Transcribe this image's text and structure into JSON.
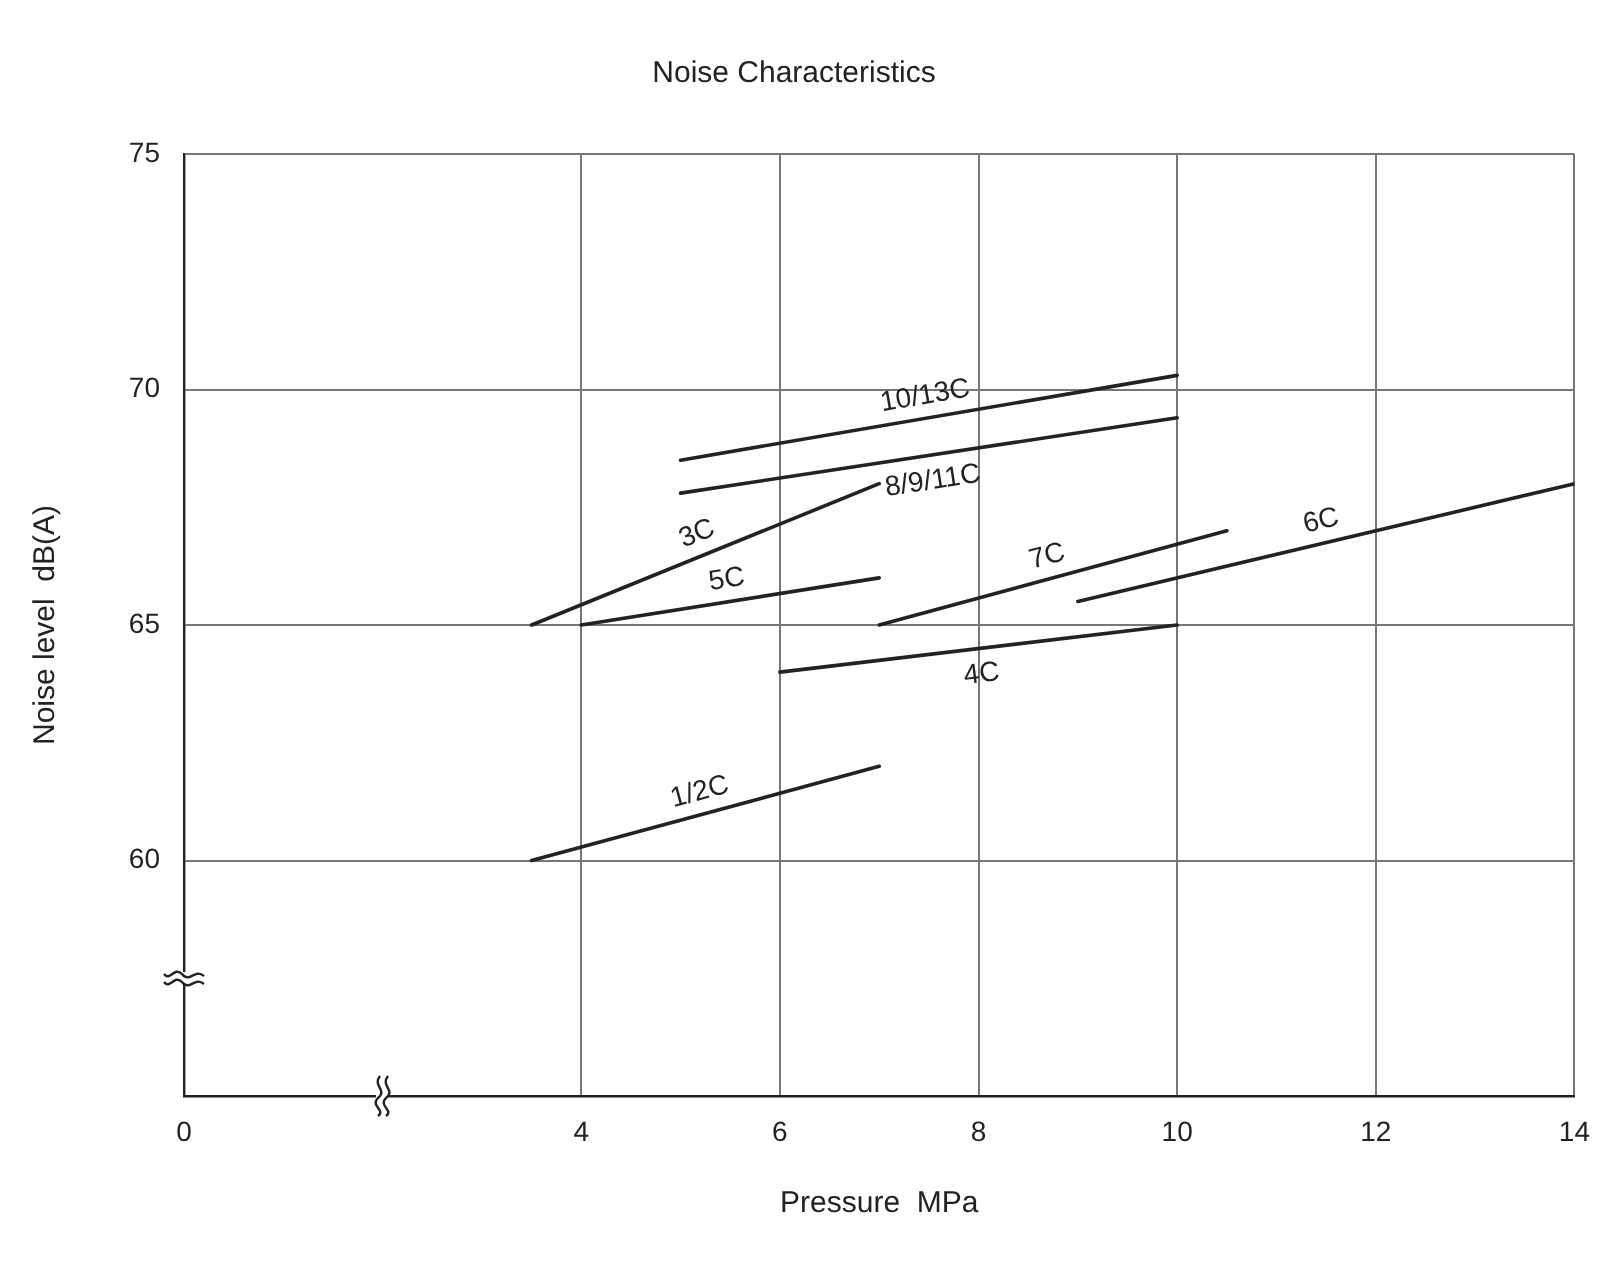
{
  "chart_data": {
    "type": "line",
    "title": "Noise Characteristics",
    "xlabel": "Pressure  MPa",
    "ylabel": "Noise level  dB(A)",
    "xlim": [
      0,
      14
    ],
    "xticks": [
      0,
      4,
      6,
      8,
      10,
      12,
      14
    ],
    "ylim": [
      55,
      75
    ],
    "yticks": [
      60,
      65,
      70,
      75
    ],
    "grid": true,
    "legend": false,
    "marker": "none",
    "line_style": "solid",
    "series": [
      {
        "name": "1/2C",
        "color": "#222222",
        "x": [
          3.5,
          7
        ],
        "values": [
          60,
          62
        ]
      },
      {
        "name": "3C",
        "color": "#222222",
        "x": [
          3.5,
          7
        ],
        "values": [
          65,
          68
        ]
      },
      {
        "name": "5C",
        "color": "#222222",
        "x": [
          4,
          7
        ],
        "values": [
          65,
          66
        ]
      },
      {
        "name": "4C",
        "color": "#222222",
        "x": [
          6,
          10
        ],
        "values": [
          64,
          65
        ]
      },
      {
        "name": "7C",
        "color": "#222222",
        "x": [
          7,
          10.5
        ],
        "values": [
          65,
          67
        ]
      },
      {
        "name": "6C",
        "color": "#222222",
        "x": [
          9,
          14
        ],
        "values": [
          65.5,
          68
        ]
      },
      {
        "name": "8/9/11C",
        "color": "#222222",
        "x": [
          5,
          10
        ],
        "values": [
          67.8,
          69.4
        ]
      },
      {
        "name": "10/13C",
        "color": "#222222",
        "x": [
          5,
          10
        ],
        "values": [
          68.5,
          70.3
        ]
      }
    ]
  }
}
